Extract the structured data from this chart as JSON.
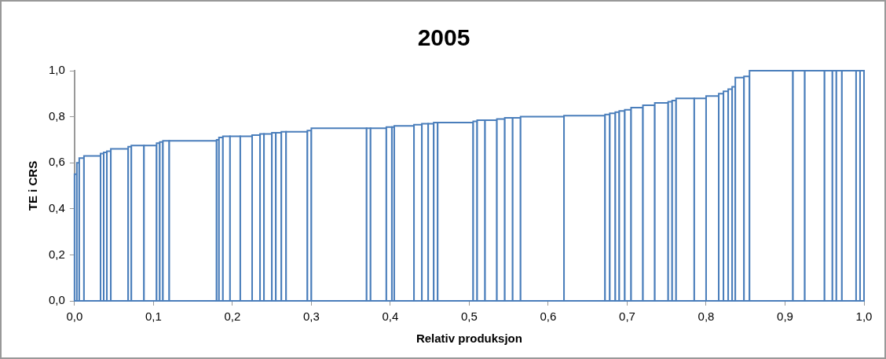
{
  "chart_data": {
    "type": "histogram",
    "title": "2005",
    "xlabel": "Relativ produksjon",
    "ylabel": "TE i CRS",
    "color": "#4a7ebb",
    "bins": [
      0,
      0.003,
      0.006,
      0.012,
      0.033,
      0.037,
      0.041,
      0.046,
      0.068,
      0.072,
      0.088,
      0.104,
      0.108,
      0.112,
      0.12,
      0.18,
      0.183,
      0.188,
      0.197,
      0.21,
      0.225,
      0.235,
      0.24,
      0.25,
      0.255,
      0.262,
      0.268,
      0.295,
      0.3,
      0.37,
      0.375,
      0.395,
      0.402,
      0.405,
      0.43,
      0.44,
      0.448,
      0.455,
      0.46,
      0.505,
      0.51,
      0.52,
      0.535,
      0.545,
      0.555,
      0.565,
      0.62,
      0.672,
      0.678,
      0.685,
      0.69,
      0.697,
      0.705,
      0.72,
      0.735,
      0.752,
      0.757,
      0.762,
      0.785,
      0.8,
      0.816,
      0.822,
      0.828,
      0.833,
      0.837,
      0.848,
      0.855,
      0.91,
      0.925,
      0.95,
      0.96,
      0.965,
      0.972,
      0.99,
      0.995,
      1.0
    ],
    "values": [
      0.55,
      0.6,
      0.62,
      0.63,
      0.64,
      0.645,
      0.65,
      0.66,
      0.67,
      0.675,
      0.675,
      0.685,
      0.69,
      0.695,
      0.695,
      0.7,
      0.71,
      0.715,
      0.715,
      0.715,
      0.72,
      0.725,
      0.725,
      0.73,
      0.73,
      0.735,
      0.735,
      0.74,
      0.75,
      0.75,
      0.75,
      0.755,
      0.755,
      0.76,
      0.765,
      0.77,
      0.77,
      0.775,
      0.775,
      0.78,
      0.785,
      0.785,
      0.79,
      0.795,
      0.795,
      0.8,
      0.805,
      0.81,
      0.815,
      0.82,
      0.825,
      0.83,
      0.84,
      0.85,
      0.86,
      0.865,
      0.87,
      0.88,
      0.88,
      0.89,
      0.9,
      0.91,
      0.92,
      0.93,
      0.97,
      0.975,
      1.0,
      1.0,
      1.0,
      1.0,
      1.0,
      1.0,
      1.0,
      1.0,
      1.0
    ],
    "xlim": [
      0,
      1
    ],
    "ylim": [
      0,
      1
    ],
    "xticks": [
      {
        "value": 0,
        "label": "0,0"
      },
      {
        "value": 0.1,
        "label": "0,1"
      },
      {
        "value": 0.2,
        "label": "0,2"
      },
      {
        "value": 0.3,
        "label": "0,3"
      },
      {
        "value": 0.4,
        "label": "0,4"
      },
      {
        "value": 0.5,
        "label": "0,5"
      },
      {
        "value": 0.6,
        "label": "0,6"
      },
      {
        "value": 0.7,
        "label": "0,7"
      },
      {
        "value": 0.8,
        "label": "0,8"
      },
      {
        "value": 0.9,
        "label": "0,9"
      },
      {
        "value": 1,
        "label": "1,0"
      }
    ],
    "yticks": [
      {
        "value": 0,
        "label": "0,0"
      },
      {
        "value": 0.2,
        "label": "0,2"
      },
      {
        "value": 0.4,
        "label": "0,4"
      },
      {
        "value": 0.6,
        "label": "0,6"
      },
      {
        "value": 0.8,
        "label": "0,8"
      },
      {
        "value": 1,
        "label": "1,0"
      }
    ]
  }
}
